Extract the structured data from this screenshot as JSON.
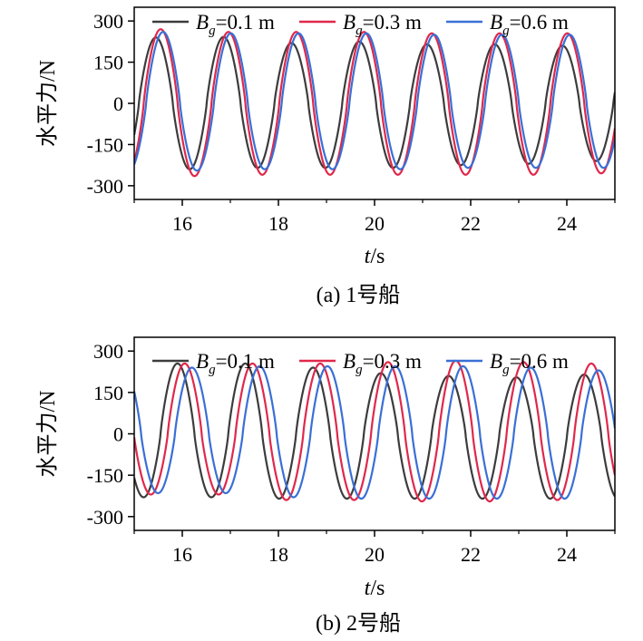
{
  "colors": {
    "Bg_0.1": "#3c3c3c",
    "Bg_0.3": "#e0284b",
    "Bg_0.6": "#3a6fd6"
  },
  "chart_data": [
    {
      "type": "line",
      "caption": "(a) 1号船",
      "xlabel": "t/s",
      "ylabel": "水平力/N",
      "xlim": [
        15,
        25
      ],
      "ylim": [
        -350,
        350
      ],
      "xticks": [
        16,
        18,
        20,
        22,
        24
      ],
      "yticks": [
        300,
        150,
        0,
        -150,
        -300
      ],
      "grid": false,
      "legend_position": "top",
      "series": [
        {
          "name": "Bg=0.1 m",
          "legend_main": "B",
          "legend_sub": "g",
          "legend_rest": "=0.1 m",
          "color_key": "Bg_0.1",
          "period": 1.41,
          "peak_x": 15.45,
          "peaks": [
            240,
            242,
            220,
            225,
            215,
            215,
            210
          ],
          "troughs": [
            -240,
            -235,
            -235,
            -235,
            -225,
            -220,
            -210
          ]
        },
        {
          "name": "Bg=0.3 m",
          "legend_main": "B",
          "legend_sub": "g",
          "legend_rest": "=0.3 m",
          "color_key": "Bg_0.3",
          "period": 1.41,
          "peak_x": 15.55,
          "peaks": [
            270,
            260,
            260,
            260,
            255,
            255,
            255
          ],
          "troughs": [
            -265,
            -260,
            -260,
            -260,
            -260,
            -260,
            -255
          ]
        },
        {
          "name": "Bg=0.6 m",
          "legend_main": "B",
          "legend_sub": "g",
          "legend_rest": "=0.6 m",
          "color_key": "Bg_0.6",
          "period": 1.41,
          "peak_x": 15.6,
          "peaks": [
            260,
            255,
            255,
            255,
            250,
            250,
            250
          ],
          "troughs": [
            -245,
            -240,
            -240,
            -240,
            -235,
            -235,
            -235
          ]
        }
      ]
    },
    {
      "type": "line",
      "caption": "(b) 2号船",
      "xlabel": "t/s",
      "ylabel": "水平力/N",
      "xlim": [
        15,
        25
      ],
      "ylim": [
        -350,
        350
      ],
      "xticks": [
        16,
        18,
        20,
        22,
        24
      ],
      "yticks": [
        300,
        150,
        0,
        -150,
        -300
      ],
      "grid": false,
      "legend_position": "top",
      "series": [
        {
          "name": "Bg=0.1 m",
          "legend_main": "B",
          "legend_sub": "g",
          "legend_rest": "=0.1 m",
          "color_key": "Bg_0.1",
          "period": 1.41,
          "peak_x": 15.9,
          "peaks": [
            255,
            255,
            240,
            220,
            210,
            205,
            215
          ],
          "troughs": [
            -230,
            -235,
            -235,
            -235,
            -235,
            -235,
            -235
          ]
        },
        {
          "name": "Bg=0.3 m",
          "legend_main": "B",
          "legend_sub": "g",
          "legend_rest": "=0.3 m",
          "color_key": "Bg_0.3",
          "period": 1.41,
          "peak_x": 16.05,
          "peaks": [
            255,
            255,
            255,
            260,
            265,
            260,
            255
          ],
          "troughs": [
            -220,
            -240,
            -240,
            -245,
            -245,
            -240,
            -240
          ]
        },
        {
          "name": "Bg=0.6 m",
          "legend_main": "B",
          "legend_sub": "g",
          "legend_rest": "=0.6 m",
          "color_key": "Bg_0.6",
          "period": 1.41,
          "peak_x": 16.2,
          "peaks": [
            240,
            245,
            245,
            245,
            245,
            240,
            230
          ],
          "troughs": [
            -215,
            -230,
            -235,
            -235,
            -235,
            -235,
            -235
          ]
        }
      ]
    }
  ]
}
